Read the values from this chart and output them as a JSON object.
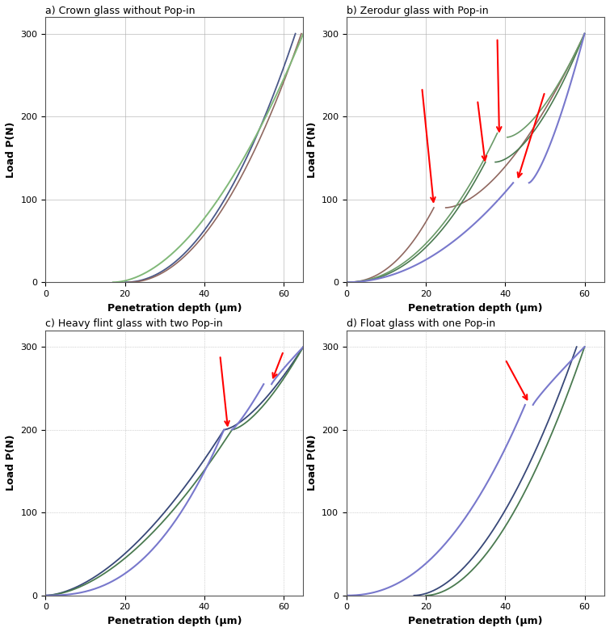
{
  "title_a": "a) Crown glass without Pop-in",
  "title_b": "b) Zerodur glass with Pop-in",
  "title_c": "c) Heavy flint glass with two Pop-in",
  "title_d": "d) Float glass with one Pop-in",
  "xlabel": "Penetration depth (μm)",
  "ylabel": "Load P(N)",
  "bg_color": "#ffffff",
  "grid_color_ab": "#aaaaaa",
  "grid_color_cd": "#999999",
  "colors": {
    "dark_green": "#4a7a50",
    "light_green": "#80b878",
    "dark_blue": "#4a5888",
    "brown": "#906860",
    "blue_violet": "#7878cc",
    "mid_green": "#6a9a68",
    "navy": "#384878"
  }
}
